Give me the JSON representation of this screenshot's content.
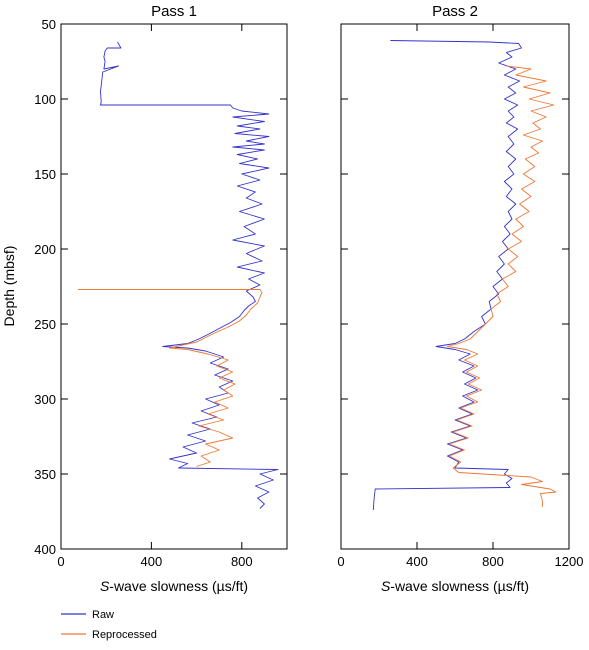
{
  "chart_data": [
    {
      "type": "line",
      "title": "Pass 1",
      "xlabel": "S-wave slowness (µs/ft)",
      "ylabel": "Depth (mbsf)",
      "xlim": [
        0,
        1000
      ],
      "ylim": [
        400,
        50
      ],
      "x_ticks": [
        "0",
        "400",
        "800"
      ],
      "y_ticks": [
        "50",
        "100",
        "150",
        "200",
        "250",
        "300",
        "350",
        "400"
      ],
      "series": [
        {
          "name": "Raw",
          "color": "#3333cc",
          "points": [
            [
              250,
              62
            ],
            [
              265,
              66
            ],
            [
              205,
              66
            ],
            [
              195,
              68
            ],
            [
              190,
              72
            ],
            [
              195,
              75
            ],
            [
              190,
              80
            ],
            [
              255,
              78
            ],
            [
              185,
              82
            ],
            [
              180,
              88
            ],
            [
              175,
              95
            ],
            [
              178,
              102
            ],
            [
              175,
              104
            ],
            [
              750,
              104
            ],
            [
              760,
              106
            ],
            [
              800,
              108
            ],
            [
              920,
              110
            ],
            [
              760,
              112
            ],
            [
              900,
              115
            ],
            [
              780,
              118
            ],
            [
              880,
              120
            ],
            [
              770,
              123
            ],
            [
              920,
              125
            ],
            [
              820,
              128
            ],
            [
              900,
              130
            ],
            [
              760,
              132
            ],
            [
              900,
              134
            ],
            [
              780,
              137
            ],
            [
              870,
              140
            ],
            [
              790,
              143
            ],
            [
              920,
              146
            ],
            [
              800,
              150
            ],
            [
              880,
              154
            ],
            [
              780,
              158
            ],
            [
              860,
              162
            ],
            [
              820,
              166
            ],
            [
              890,
              170
            ],
            [
              790,
              175
            ],
            [
              900,
              180
            ],
            [
              810,
              185
            ],
            [
              860,
              190
            ],
            [
              760,
              194
            ],
            [
              900,
              198
            ],
            [
              820,
              203
            ],
            [
              890,
              208
            ],
            [
              780,
              212
            ],
            [
              900,
              216
            ],
            [
              830,
              220
            ],
            [
              880,
              224
            ],
            [
              820,
              228
            ],
            [
              850,
              232
            ],
            [
              860,
              235
            ],
            [
              830,
              238
            ],
            [
              810,
              241
            ],
            [
              790,
              245
            ],
            [
              750,
              249
            ],
            [
              700,
              253
            ],
            [
              650,
              257
            ],
            [
              610,
              260
            ],
            [
              560,
              263
            ],
            [
              450,
              265
            ],
            [
              560,
              266
            ],
            [
              640,
              268
            ],
            [
              720,
              272
            ],
            [
              660,
              276
            ],
            [
              740,
              280
            ],
            [
              680,
              284
            ],
            [
              760,
              288
            ],
            [
              700,
              292
            ],
            [
              740,
              296
            ],
            [
              640,
              300
            ],
            [
              700,
              304
            ],
            [
              620,
              308
            ],
            [
              690,
              312
            ],
            [
              580,
              316
            ],
            [
              660,
              320
            ],
            [
              560,
              324
            ],
            [
              640,
              328
            ],
            [
              540,
              332
            ],
            [
              600,
              336
            ],
            [
              480,
              340
            ],
            [
              560,
              343
            ],
            [
              520,
              346
            ],
            [
              960,
              347
            ],
            [
              880,
              350
            ],
            [
              940,
              354
            ],
            [
              860,
              358
            ],
            [
              920,
              362
            ],
            [
              870,
              366
            ],
            [
              900,
              370
            ],
            [
              880,
              373
            ]
          ]
        },
        {
          "name": "Reprocessed",
          "color": "#ee7733",
          "points": [
            [
              75,
              227
            ],
            [
              880,
              227
            ],
            [
              890,
              229
            ],
            [
              880,
              232
            ],
            [
              870,
              236
            ],
            [
              840,
              240
            ],
            [
              820,
              244
            ],
            [
              790,
              248
            ],
            [
              740,
              252
            ],
            [
              680,
              256
            ],
            [
              640,
              259
            ],
            [
              600,
              262
            ],
            [
              540,
              264
            ],
            [
              480,
              266
            ],
            [
              560,
              267
            ],
            [
              650,
              270
            ],
            [
              740,
              274
            ],
            [
              690,
              278
            ],
            [
              760,
              282
            ],
            [
              700,
              286
            ],
            [
              770,
              290
            ],
            [
              720,
              294
            ],
            [
              760,
              298
            ],
            [
              680,
              302
            ],
            [
              740,
              306
            ],
            [
              650,
              310
            ],
            [
              720,
              314
            ],
            [
              610,
              318
            ],
            [
              700,
              322
            ],
            [
              760,
              326
            ],
            [
              640,
              330
            ],
            [
              700,
              334
            ],
            [
              620,
              338
            ],
            [
              660,
              342
            ],
            [
              600,
              345
            ]
          ]
        }
      ]
    },
    {
      "type": "line",
      "title": "Pass 2",
      "xlabel": "S-wave slowness (µs/ft)",
      "xlim": [
        0,
        1200
      ],
      "ylim": [
        400,
        50
      ],
      "x_ticks": [
        "0",
        "400",
        "800",
        "1200"
      ],
      "y_ticks": [
        "50",
        "100",
        "150",
        "200",
        "250",
        "300",
        "350",
        "400"
      ],
      "series": [
        {
          "name": "Raw",
          "color": "#3333cc",
          "points": [
            [
              260,
              61
            ],
            [
              780,
              62
            ],
            [
              935,
              63
            ],
            [
              950,
              66
            ],
            [
              870,
              69
            ],
            [
              900,
              72
            ],
            [
              830,
              76
            ],
            [
              920,
              80
            ],
            [
              860,
              84
            ],
            [
              940,
              88
            ],
            [
              880,
              92
            ],
            [
              920,
              96
            ],
            [
              860,
              100
            ],
            [
              930,
              104
            ],
            [
              880,
              108
            ],
            [
              910,
              112
            ],
            [
              870,
              116
            ],
            [
              930,
              120
            ],
            [
              880,
              125
            ],
            [
              910,
              130
            ],
            [
              870,
              135
            ],
            [
              920,
              140
            ],
            [
              880,
              145
            ],
            [
              910,
              150
            ],
            [
              860,
              155
            ],
            [
              900,
              160
            ],
            [
              870,
              165
            ],
            [
              920,
              170
            ],
            [
              880,
              175
            ],
            [
              900,
              180
            ],
            [
              860,
              185
            ],
            [
              890,
              190
            ],
            [
              850,
              195
            ],
            [
              880,
              200
            ],
            [
              830,
              205
            ],
            [
              860,
              210
            ],
            [
              820,
              215
            ],
            [
              850,
              220
            ],
            [
              800,
              225
            ],
            [
              830,
              230
            ],
            [
              780,
              235
            ],
            [
              790,
              240
            ],
            [
              740,
              245
            ],
            [
              760,
              250
            ],
            [
              700,
              255
            ],
            [
              650,
              260
            ],
            [
              600,
              263
            ],
            [
              500,
              265
            ],
            [
              600,
              267
            ],
            [
              680,
              270
            ],
            [
              620,
              274
            ],
            [
              700,
              278
            ],
            [
              640,
              282
            ],
            [
              710,
              286
            ],
            [
              650,
              290
            ],
            [
              720,
              294
            ],
            [
              640,
              298
            ],
            [
              700,
              302
            ],
            [
              620,
              306
            ],
            [
              690,
              310
            ],
            [
              600,
              314
            ],
            [
              680,
              318
            ],
            [
              580,
              322
            ],
            [
              660,
              326
            ],
            [
              560,
              330
            ],
            [
              640,
              334
            ],
            [
              560,
              338
            ],
            [
              620,
              342
            ],
            [
              600,
              346
            ],
            [
              880,
              347
            ],
            [
              860,
              350
            ],
            [
              900,
              353
            ],
            [
              870,
              356
            ],
            [
              890,
              359
            ],
            [
              180,
              360
            ],
            [
              175,
              365
            ],
            [
              172,
              370
            ],
            [
              170,
              374
            ]
          ]
        },
        {
          "name": "Reprocessed",
          "color": "#ee7733",
          "points": [
            [
              870,
              78
            ],
            [
              1000,
              80
            ],
            [
              920,
              84
            ],
            [
              1080,
              88
            ],
            [
              960,
              92
            ],
            [
              1100,
              96
            ],
            [
              990,
              100
            ],
            [
              1120,
              104
            ],
            [
              1000,
              108
            ],
            [
              1080,
              112
            ],
            [
              1010,
              116
            ],
            [
              1050,
              120
            ],
            [
              960,
              124
            ],
            [
              1060,
              128
            ],
            [
              1000,
              132
            ],
            [
              1040,
              136
            ],
            [
              970,
              140
            ],
            [
              1020,
              145
            ],
            [
              960,
              150
            ],
            [
              1020,
              155
            ],
            [
              950,
              160
            ],
            [
              1000,
              165
            ],
            [
              940,
              170
            ],
            [
              990,
              175
            ],
            [
              920,
              180
            ],
            [
              960,
              185
            ],
            [
              900,
              190
            ],
            [
              950,
              195
            ],
            [
              880,
              200
            ],
            [
              930,
              205
            ],
            [
              880,
              210
            ],
            [
              920,
              215
            ],
            [
              850,
              220
            ],
            [
              880,
              225
            ],
            [
              820,
              230
            ],
            [
              840,
              235
            ],
            [
              790,
              240
            ],
            [
              800,
              245
            ],
            [
              760,
              250
            ],
            [
              720,
              255
            ],
            [
              680,
              260
            ],
            [
              620,
              263
            ],
            [
              560,
              265
            ],
            [
              660,
              267
            ],
            [
              720,
              270
            ],
            [
              650,
              274
            ],
            [
              720,
              278
            ],
            [
              660,
              282
            ],
            [
              730,
              286
            ],
            [
              670,
              290
            ],
            [
              740,
              294
            ],
            [
              660,
              298
            ],
            [
              720,
              302
            ],
            [
              630,
              306
            ],
            [
              700,
              310
            ],
            [
              610,
              314
            ],
            [
              690,
              318
            ],
            [
              590,
              322
            ],
            [
              670,
              326
            ],
            [
              570,
              330
            ],
            [
              650,
              334
            ],
            [
              570,
              338
            ],
            [
              630,
              342
            ],
            [
              590,
              346
            ],
            [
              620,
              349
            ],
            [
              1000,
              352
            ],
            [
              1060,
              355
            ],
            [
              950,
              357
            ],
            [
              1100,
              360
            ],
            [
              1130,
              362
            ],
            [
              1050,
              363
            ],
            [
              1060,
              368
            ],
            [
              1060,
              372
            ]
          ]
        }
      ]
    }
  ],
  "legend": {
    "items": [
      {
        "label": "Raw",
        "color": "#3333cc"
      },
      {
        "label": "Reprocessed",
        "color": "#ee7733"
      }
    ]
  }
}
